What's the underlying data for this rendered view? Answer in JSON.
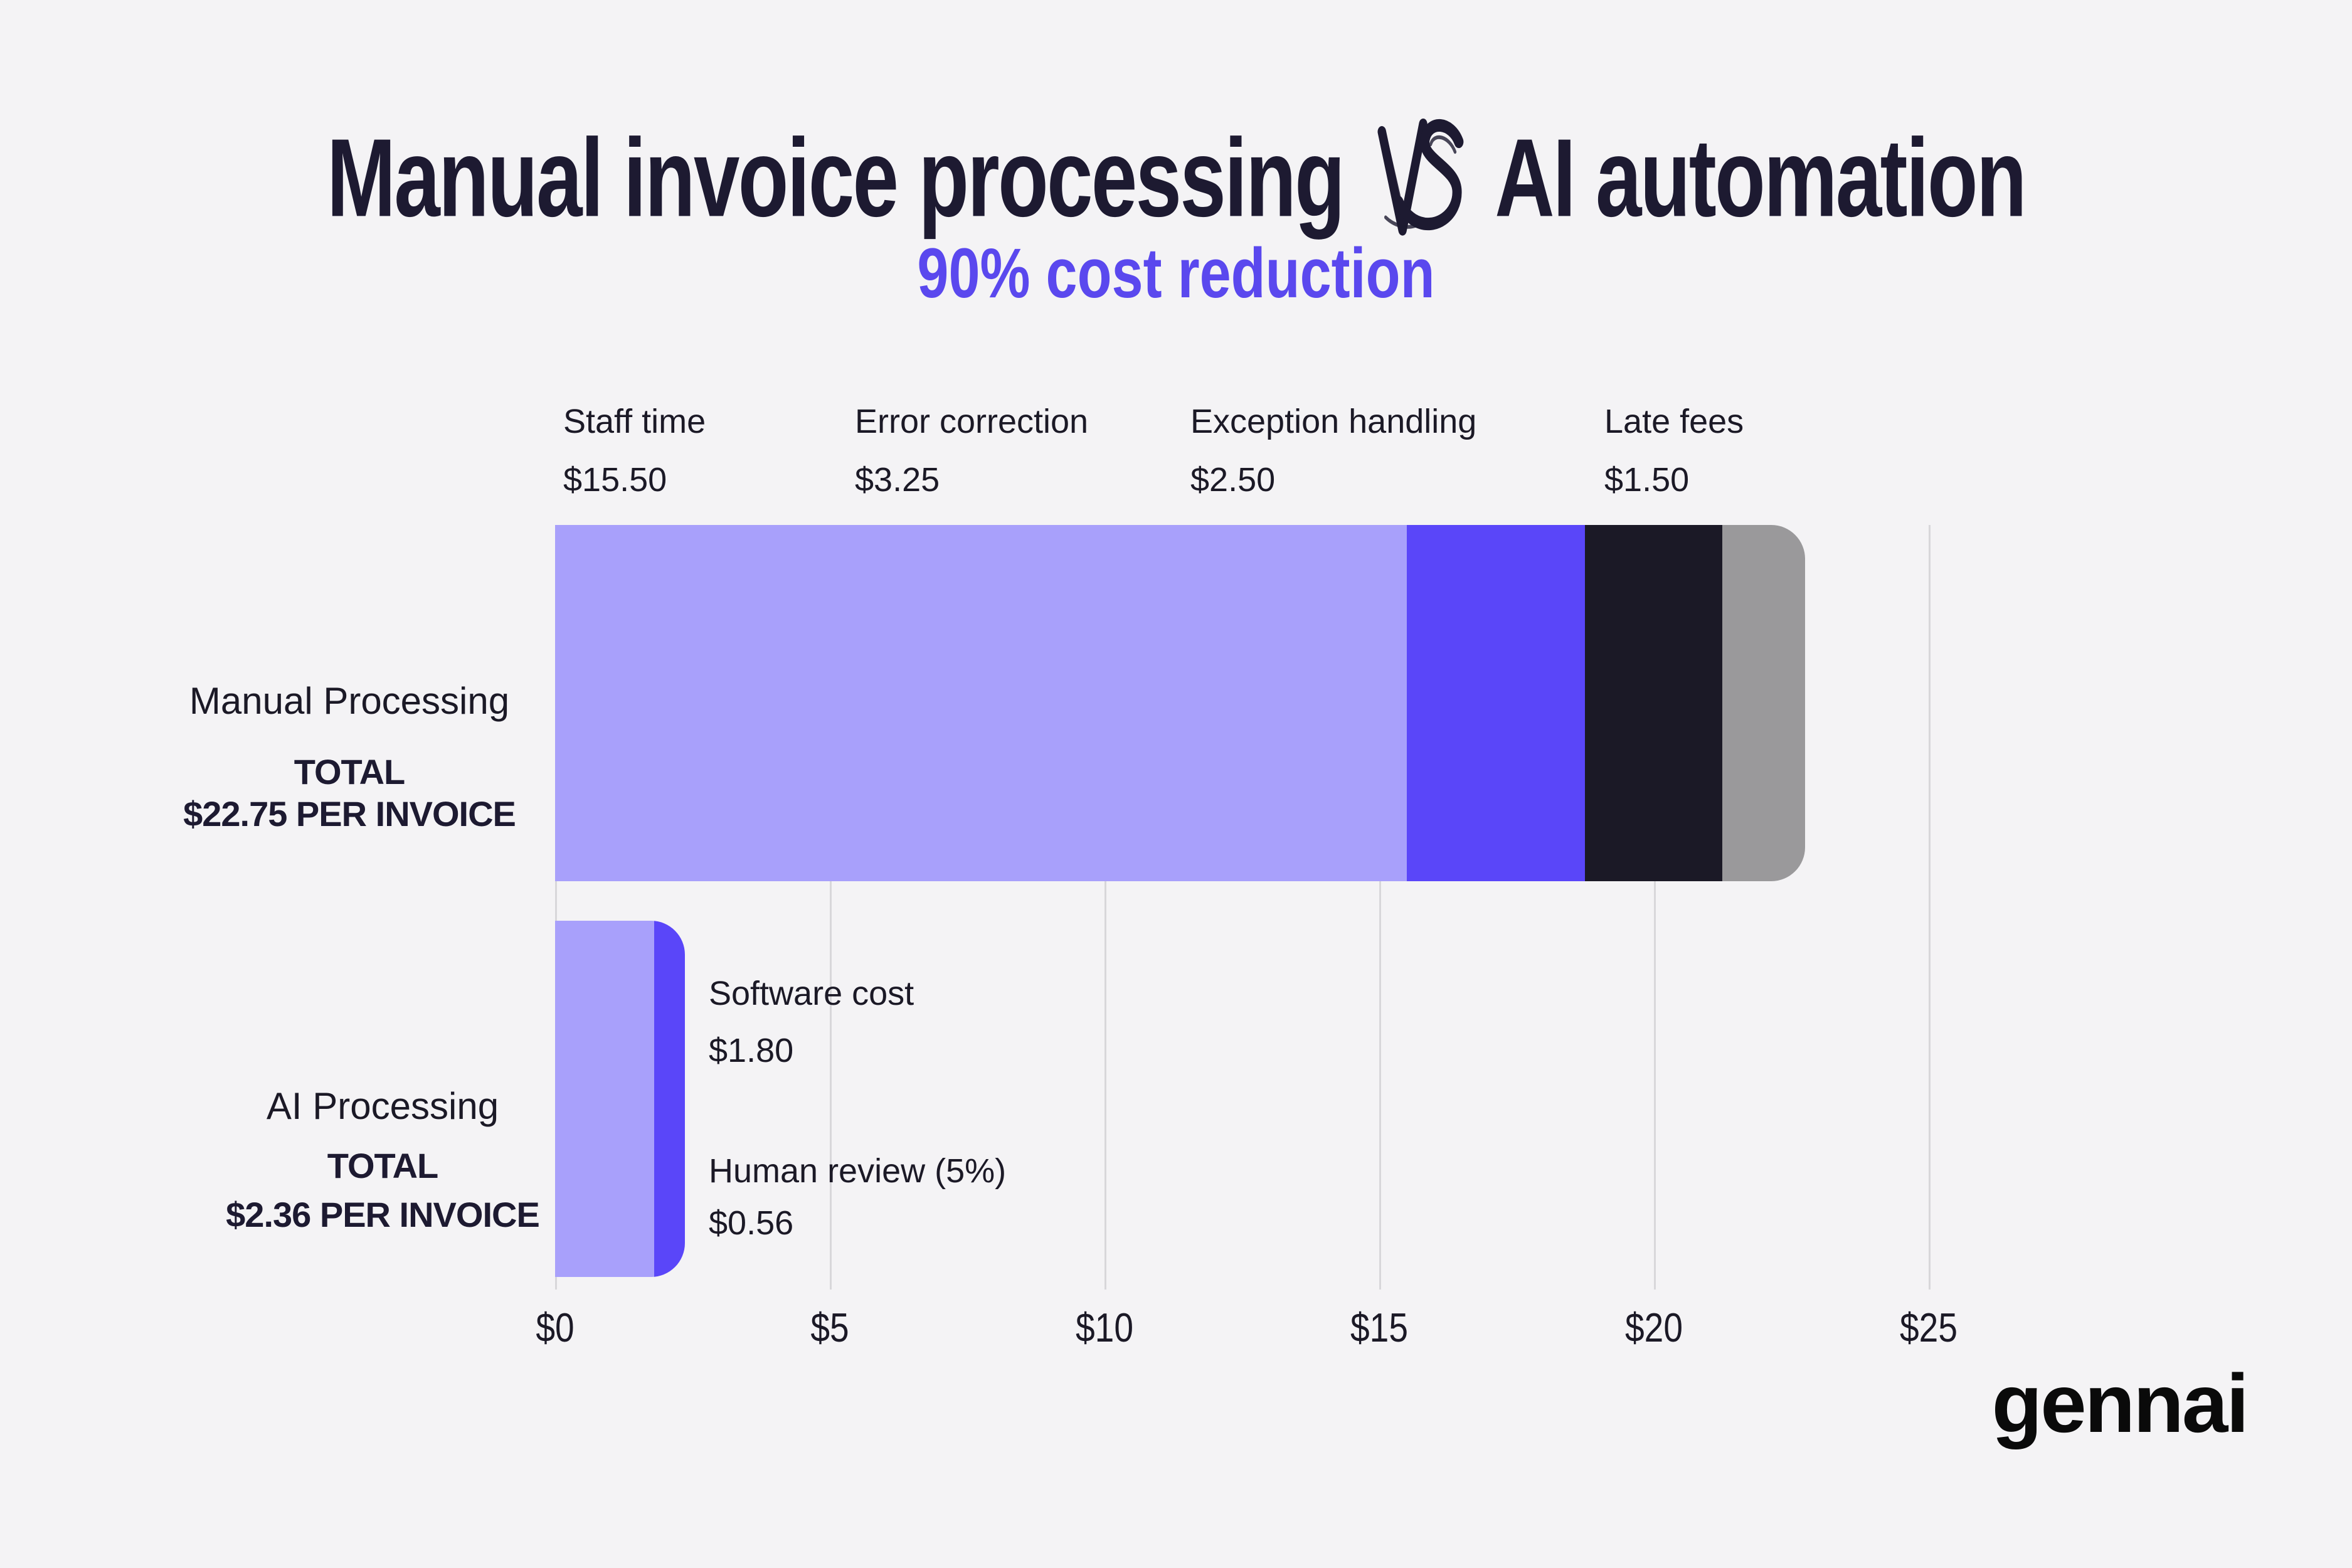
{
  "title": {
    "left": "Manual invoice processing",
    "vs": "VS",
    "right": "AI automation"
  },
  "subtitle": "90% cost reduction",
  "logo": "gennai",
  "colors": {
    "background": "#F4F3F5",
    "ink": "#1D1A31",
    "ink2": "#1B1926",
    "accent": "#5A48EE",
    "gridline": "#D8D7DA",
    "staff_time": "#A8A0FB",
    "error_correction": "#5A46F9",
    "exception_handling": "#1B1926",
    "late_fees": "#9A999B",
    "ai_software": "#A8A0FB",
    "ai_human_review": "#5A46F9"
  },
  "chart_data": {
    "type": "bar",
    "orientation": "horizontal",
    "stacked": true,
    "unit": "USD per invoice",
    "grid": true,
    "xlim": [
      0,
      25
    ],
    "x_ticks": [
      "$0",
      "$5",
      "$10",
      "$15",
      "$20",
      "$25"
    ],
    "x_tick_values": [
      0,
      5,
      10,
      15,
      20,
      25
    ],
    "rows": [
      {
        "name": "Manual Processing",
        "total_value": 22.75,
        "total_label_line1": "TOTAL",
        "total_label_line2": "$22.75 PER INVOICE",
        "segments": [
          {
            "label": "Staff time",
            "value": 15.5,
            "display_value": "$15.50",
            "color_key": "staff_time"
          },
          {
            "label": "Error correction",
            "value": 3.25,
            "display_value": "$3.25",
            "color_key": "error_correction"
          },
          {
            "label": "Exception handling",
            "value": 2.5,
            "display_value": "$2.50",
            "color_key": "exception_handling"
          },
          {
            "label": "Late fees",
            "value": 1.5,
            "display_value": "$1.50",
            "color_key": "late_fees"
          }
        ]
      },
      {
        "name": "AI Processing",
        "total_value": 2.36,
        "total_label_line1": "TOTAL",
        "total_label_line2": "$2.36 PER INVOICE",
        "segments": [
          {
            "label": "Software cost",
            "value": 1.8,
            "display_value": "$1.80",
            "color_key": "ai_software"
          },
          {
            "label": "Human review (5%)",
            "value": 0.56,
            "display_value": "$0.56",
            "color_key": "ai_human_review"
          }
        ]
      }
    ]
  }
}
